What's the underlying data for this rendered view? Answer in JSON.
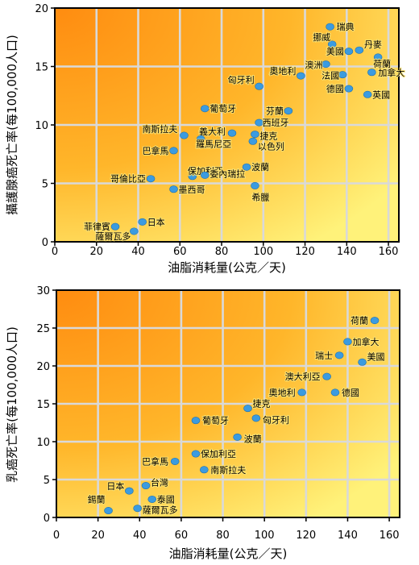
{
  "colors": {
    "point": "#3b9be0",
    "bg_hot": "#ff8c10",
    "bg_cool": "#fff27a",
    "grid": "#d9d9d9"
  },
  "chart_data": [
    {
      "type": "scatter",
      "xlabel": "油脂消耗量(公克／天)",
      "ylabel": "攝護腺癌死亡率(每100,000人口)",
      "xlim": [
        0,
        165
      ],
      "ylim": [
        0,
        20
      ],
      "xticks": [
        0,
        20,
        40,
        60,
        80,
        100,
        120,
        140,
        160
      ],
      "yticks": [
        0,
        5,
        10,
        15,
        20
      ],
      "grid": true,
      "points": [
        {
          "label": "瑞典",
          "x": 132,
          "y": 18.4
        },
        {
          "label": "挪威",
          "x": 133,
          "y": 16.9
        },
        {
          "label": "丹麥",
          "x": 146,
          "y": 16.4
        },
        {
          "label": "美國",
          "x": 141,
          "y": 16.3
        },
        {
          "label": "荷蘭",
          "x": 155,
          "y": 15.8
        },
        {
          "label": "澳洲",
          "x": 130,
          "y": 15.2
        },
        {
          "label": "奧地利",
          "x": 118,
          "y": 14.2
        },
        {
          "label": "法國",
          "x": 138,
          "y": 14.3
        },
        {
          "label": "加拿大",
          "x": 152,
          "y": 14.5
        },
        {
          "label": "匈牙利",
          "x": 98,
          "y": 13.3
        },
        {
          "label": "德國",
          "x": 141,
          "y": 13.1
        },
        {
          "label": "英國",
          "x": 150,
          "y": 12.6
        },
        {
          "label": "葡萄牙",
          "x": 72,
          "y": 11.4
        },
        {
          "label": "芬蘭",
          "x": 112,
          "y": 11.2
        },
        {
          "label": "西班牙",
          "x": 98,
          "y": 10.2
        },
        {
          "label": "南斯拉夫",
          "x": 62,
          "y": 9.1
        },
        {
          "label": "義大利",
          "x": 85,
          "y": 9.3
        },
        {
          "label": "捷克",
          "x": 96,
          "y": 9.2
        },
        {
          "label": "羅馬尼亞",
          "x": 70,
          "y": 8.8
        },
        {
          "label": "以色列",
          "x": 95,
          "y": 8.6
        },
        {
          "label": "巴拿馬",
          "x": 57,
          "y": 7.8
        },
        {
          "label": "保加利亞",
          "x": 66,
          "y": 5.6
        },
        {
          "label": "委內瑞拉",
          "x": 72,
          "y": 5.7
        },
        {
          "label": "波蘭",
          "x": 92,
          "y": 6.4
        },
        {
          "label": "哥倫比亞",
          "x": 46,
          "y": 5.4
        },
        {
          "label": "墨西哥",
          "x": 57,
          "y": 4.5
        },
        {
          "label": "希臘",
          "x": 96,
          "y": 4.8
        },
        {
          "label": "日本",
          "x": 42,
          "y": 1.7
        },
        {
          "label": "菲律賓",
          "x": 29,
          "y": 1.3
        },
        {
          "label": "薩爾瓦多",
          "x": 38,
          "y": 0.9
        }
      ]
    },
    {
      "type": "scatter",
      "xlabel": "油脂消耗量(公克／天)",
      "ylabel": "乳癌死亡率(每100,000人口)",
      "xlim": [
        0,
        165
      ],
      "ylim": [
        0,
        30
      ],
      "xticks": [
        0,
        20,
        40,
        60,
        80,
        100,
        120,
        140,
        160
      ],
      "yticks": [
        0,
        5,
        10,
        15,
        20,
        25,
        30
      ],
      "grid": true,
      "points": [
        {
          "label": "荷蘭",
          "x": 153,
          "y": 26.0
        },
        {
          "label": "加拿大",
          "x": 140,
          "y": 23.2
        },
        {
          "label": "瑞士",
          "x": 136,
          "y": 21.4
        },
        {
          "label": "美國",
          "x": 147,
          "y": 20.5
        },
        {
          "label": "澳大利亞",
          "x": 130,
          "y": 18.6
        },
        {
          "label": "奧地利",
          "x": 118,
          "y": 16.5
        },
        {
          "label": "德國",
          "x": 134,
          "y": 16.5
        },
        {
          "label": "捷克",
          "x": 92,
          "y": 14.4
        },
        {
          "label": "葡萄牙",
          "x": 67,
          "y": 12.8
        },
        {
          "label": "匈牙利",
          "x": 96,
          "y": 13.1
        },
        {
          "label": "波蘭",
          "x": 87,
          "y": 10.6
        },
        {
          "label": "巴拿馬",
          "x": 57,
          "y": 7.4
        },
        {
          "label": "保加利亞",
          "x": 67,
          "y": 8.4
        },
        {
          "label": "南斯拉夫",
          "x": 71,
          "y": 6.3
        },
        {
          "label": "日本",
          "x": 35,
          "y": 3.5
        },
        {
          "label": "台灣",
          "x": 43,
          "y": 4.2
        },
        {
          "label": "泰國",
          "x": 46,
          "y": 2.4
        },
        {
          "label": "錫蘭",
          "x": 25,
          "y": 0.9
        },
        {
          "label": "薩爾瓦多",
          "x": 39,
          "y": 1.2
        }
      ]
    }
  ]
}
